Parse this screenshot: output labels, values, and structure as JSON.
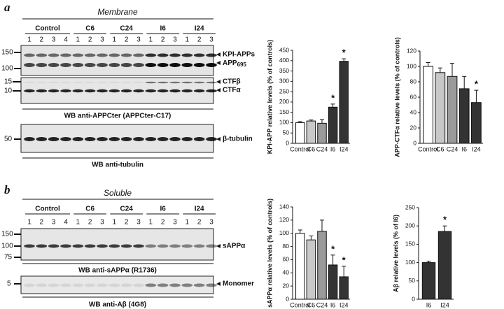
{
  "blot_a": {
    "panel": "a",
    "title": "Membrane",
    "groups": [
      {
        "name": "Control",
        "lanes": [
          "1",
          "2",
          "3",
          "4"
        ]
      },
      {
        "name": "C6",
        "lanes": [
          "1",
          "2",
          "3"
        ]
      },
      {
        "name": "C24",
        "lanes": [
          "1",
          "2",
          "3"
        ]
      },
      {
        "name": "I6",
        "lanes": [
          "1",
          "2",
          "3"
        ]
      },
      {
        "name": "I24",
        "lanes": [
          "1",
          "2",
          "3"
        ]
      }
    ],
    "markers": [
      "150",
      "100",
      "15",
      "10",
      "50"
    ],
    "band_labels": {
      "kpi": "KPI-APPs",
      "app": "APP",
      "app_sub": "695",
      "ctfb": "CTFβ",
      "ctfa": "CTFα",
      "tubulin": "β-tubulin"
    },
    "captions": [
      "WB anti-APPCter (APPCter-C17)",
      "WB anti-tubulin"
    ]
  },
  "blot_b": {
    "panel": "b",
    "title": "Soluble",
    "groups": [
      {
        "name": "Control",
        "lanes": [
          "1",
          "2",
          "3",
          "4"
        ]
      },
      {
        "name": "C6",
        "lanes": [
          "1",
          "2",
          "3"
        ]
      },
      {
        "name": "C24",
        "lanes": [
          "1",
          "2",
          "3"
        ]
      },
      {
        "name": "I6",
        "lanes": [
          "1",
          "2",
          "3"
        ]
      },
      {
        "name": "I24",
        "lanes": [
          "1",
          "2",
          "3"
        ]
      }
    ],
    "markers": [
      "150",
      "100",
      "75",
      "5"
    ],
    "band_labels": {
      "sapp": "sAPPα",
      "monomer": "Monomer"
    },
    "captions": [
      "WB anti-sAPPα (R1736)",
      "WB anti-Aβ (4G8)"
    ]
  },
  "chart_data": [
    {
      "type": "bar",
      "y_label": "KPI-APP relative levels (% of controls)",
      "categories": [
        "Control",
        "C6",
        "C24",
        "I6",
        "I24"
      ],
      "values": [
        100,
        108,
        97,
        175,
        397
      ],
      "errors": [
        5,
        5,
        18,
        15,
        12
      ],
      "colors": [
        "#ffffff",
        "#c8c8c8",
        "#9a9a9a",
        "#333333",
        "#333333"
      ],
      "ylim": [
        0,
        450
      ],
      "yticks": [
        0,
        50,
        100,
        150,
        200,
        250,
        300,
        350,
        400,
        450
      ],
      "annotations": [
        {
          "text": "*",
          "category": "I6"
        },
        {
          "text": "*",
          "category": "I24"
        }
      ]
    },
    {
      "type": "bar",
      "y_label": "APP-CTFα relative levels (% of controls)",
      "categories": [
        "Control",
        "C6",
        "C24",
        "I6",
        "I24"
      ],
      "values": [
        100,
        92,
        87,
        71,
        53
      ],
      "errors": [
        5,
        6,
        17,
        16,
        16
      ],
      "colors": [
        "#ffffff",
        "#c8c8c8",
        "#9a9a9a",
        "#333333",
        "#333333"
      ],
      "ylim": [
        0,
        120
      ],
      "yticks": [
        0,
        20,
        40,
        60,
        80,
        100,
        120
      ],
      "annotations": [
        {
          "text": "*",
          "category": "I24"
        }
      ]
    },
    {
      "type": "bar",
      "y_label": "sAPPα relative levels (% of controls)",
      "categories": [
        "Control",
        "C6",
        "C24",
        "I6",
        "I24"
      ],
      "values": [
        100,
        90,
        103,
        52,
        34
      ],
      "errors": [
        5,
        6,
        17,
        15,
        16
      ],
      "colors": [
        "#ffffff",
        "#c8c8c8",
        "#9a9a9a",
        "#333333",
        "#333333"
      ],
      "ylim": [
        0,
        140
      ],
      "yticks": [
        0,
        20,
        40,
        60,
        80,
        100,
        120,
        140
      ],
      "annotations": [
        {
          "text": "*",
          "category": "I6"
        },
        {
          "text": "*",
          "category": "I24"
        }
      ]
    },
    {
      "type": "bar",
      "y_label": "Aβ relative levels (% of I6)",
      "categories": [
        "I6",
        "I24"
      ],
      "values": [
        100,
        185
      ],
      "errors": [
        4,
        15
      ],
      "colors": [
        "#333333",
        "#333333"
      ],
      "ylim": [
        0,
        250
      ],
      "yticks": [
        0,
        50,
        100,
        150,
        200,
        250
      ],
      "annotations": [
        {
          "text": "*",
          "category": "I24"
        }
      ]
    }
  ]
}
